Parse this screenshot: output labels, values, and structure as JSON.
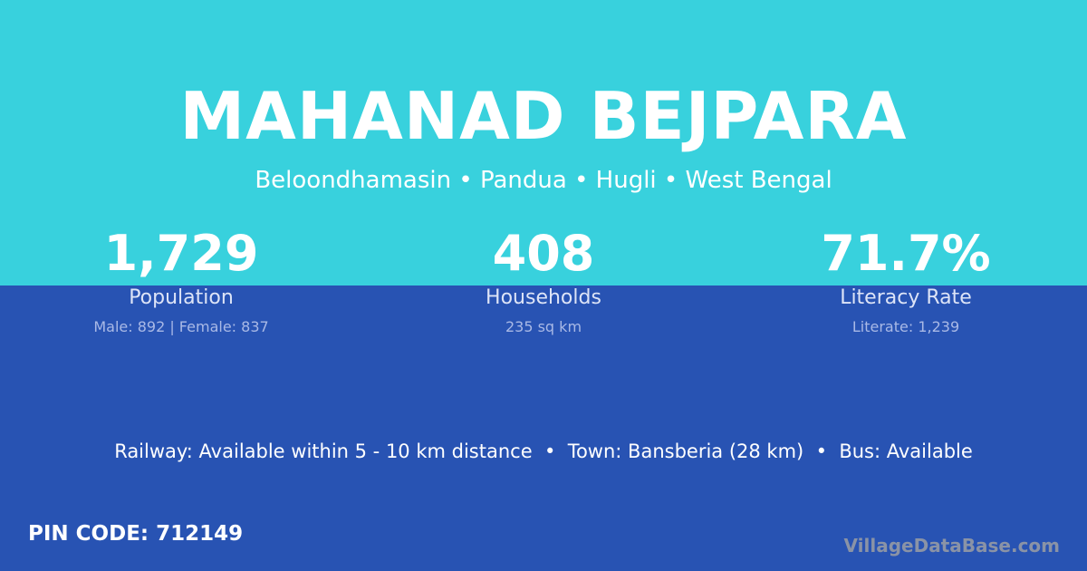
{
  "title": "MAHANAD BEJPARA",
  "subtitle": "Beloondhamasin • Pandua • Hugli • West Bengal",
  "stats": [
    {
      "value": "1,729",
      "label": "Population",
      "detail": "Male: 892 | Female: 837"
    },
    {
      "value": "408",
      "label": "Households",
      "detail": "235 sq km"
    },
    {
      "value": "71.7%",
      "label": "Literacy Rate",
      "detail": "Literate: 1,239"
    }
  ],
  "info": "Railway: Available within 5 - 10 km distance  •  Town: Bansberia (28 km)  •  Bus: Available",
  "pin": "PIN CODE: 712149",
  "brand": "VillageDataBase.com",
  "colors": {
    "top": "#38d1dd",
    "bottom": "#2853b3"
  }
}
